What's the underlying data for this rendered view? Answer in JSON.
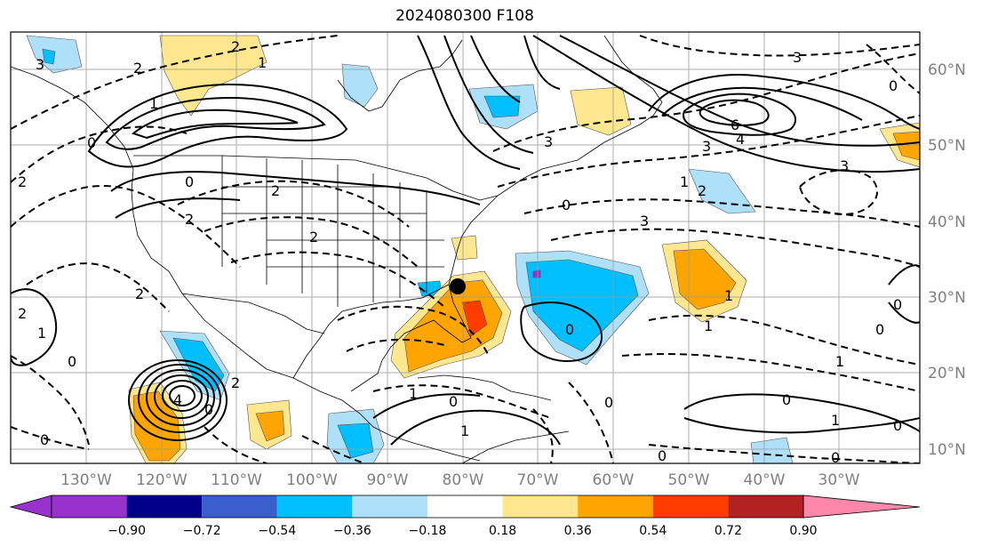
{
  "title": "2024080300 F108",
  "map": {
    "lat_labels": [
      "60°N",
      "50°N",
      "40°N",
      "30°N",
      "20°N",
      "10°N"
    ],
    "lon_labels": [
      "130°W",
      "120°W",
      "110°W",
      "100°W",
      "90°W",
      "80°W",
      "70°W",
      "60°W",
      "50°W",
      "40°W",
      "30°W"
    ],
    "contour_labels": [
      "3",
      "2",
      "1",
      "2",
      "6",
      "4",
      "3",
      "3",
      "2",
      "3",
      "3",
      "2",
      "1",
      "0",
      "0",
      "2",
      "2",
      "2",
      "3",
      "0",
      "1",
      "1",
      "2",
      "0",
      "0",
      "1",
      "0",
      "2",
      "0",
      "1",
      "0",
      "2",
      "4",
      "1",
      "0",
      "0",
      "0",
      "0",
      "1",
      "1",
      "0",
      "0",
      "0",
      "1",
      "0"
    ],
    "marker": "storm-center-dot"
  },
  "colorbar": {
    "labels": [
      "−0.90",
      "−0.72",
      "−0.54",
      "−0.36",
      "−0.18",
      "0.18",
      "0.36",
      "0.54",
      "0.72",
      "0.90"
    ],
    "colors": [
      "#9932cc",
      "#00008b",
      "#3a5fcd",
      "#00bfff",
      "#afe0fa",
      "#ffffff",
      "#ffe78f",
      "#ffa500",
      "#ff3c00",
      "#b22222",
      "#ff88aa"
    ]
  }
}
